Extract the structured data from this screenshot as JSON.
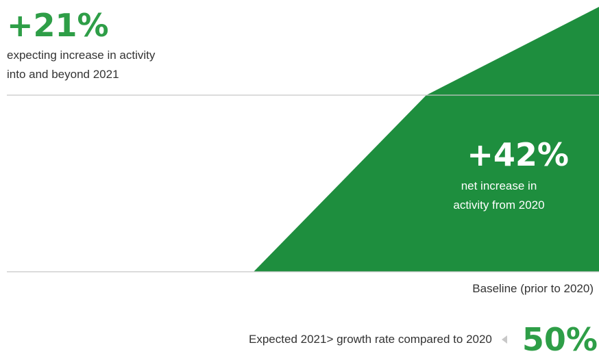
{
  "chart_data": {
    "type": "area",
    "x": [
      "Baseline (prior to 2020)",
      "2020",
      "2021"
    ],
    "values": [
      0,
      42,
      63
    ],
    "annotations": {
      "top_value": "+21%",
      "top_text_line1": "expecting increase in activity",
      "top_text_line2": "into and beyond 2021",
      "mid_value": "+42%",
      "mid_text_line1": "net increase in",
      "mid_text_line2": "activity from 2020",
      "baseline_label": "Baseline (prior to 2020)",
      "bottom_text": "Expected 2021> growth rate compared to 2020",
      "bottom_value": "50%"
    },
    "colors": {
      "fill": "#1e8e3e",
      "accent_text": "#2e9e47",
      "gridline": "#c8c8c8"
    },
    "grid": true,
    "legend": "none"
  }
}
